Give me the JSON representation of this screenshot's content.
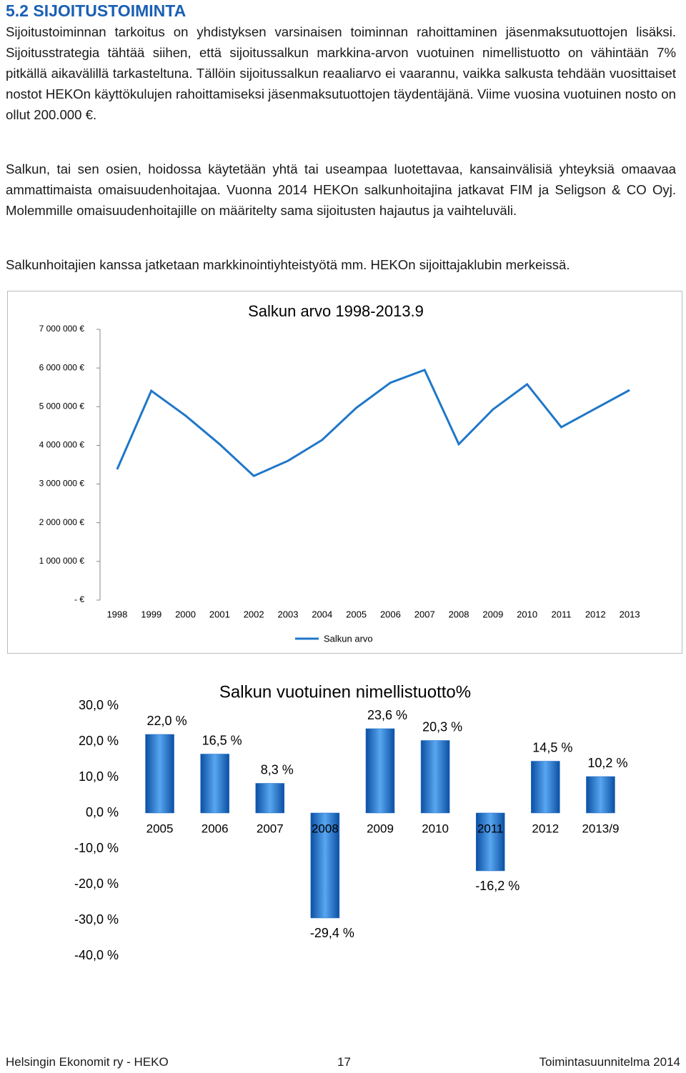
{
  "heading": "5.2  SIJOITUSTOIMINTA",
  "paragraphs": [
    "Sijoitustoiminnan tarkoitus on yhdistyksen varsinaisen toiminnan rahoittaminen jäsenmaksutuottojen lisäksi. Sijoitusstrategia tähtää siihen, että sijoitussalkun markkina-arvon vuotuinen nimellistuotto on vähintään 7% pitkällä aikavälillä tarkasteltuna. Tällöin sijoitussalkun reaaliarvo ei vaarannu, vaikka salkusta tehdään vuosittaiset nostot HEKOn käyttökulujen rahoittamiseksi jäsenmaksutuottojen täydentäjänä. Viime vuosina vuotuinen nosto on ollut 200.000 €.",
    "Salkun, tai sen osien, hoidossa käytetään yhtä tai useampaa luotettavaa, kansainvälisiä yhteyksiä omaavaa ammattimaista omaisuudenhoitajaa. Vuonna 2014 HEKOn salkunhoitajina jatkavat FIM ja Seligson & CO Oyj. Molemmille omaisuudenhoitajille on määritelty sama sijoitusten hajautus ja vaihteluväli.",
    "Salkunhoitajien kanssa jatketaan markkinointiyhteistyötä mm. HEKOn sijoittajaklubin merkeissä."
  ],
  "chart_data": [
    {
      "type": "line",
      "title": "Salkun arvo 1998-2013.9",
      "categories": [
        "1998",
        "1999",
        "2000",
        "2001",
        "2002",
        "2003",
        "2004",
        "2005",
        "2006",
        "2007",
        "2008",
        "2009",
        "2010",
        "2011",
        "2012",
        "2013"
      ],
      "series": [
        {
          "name": "Salkun arvo",
          "color": "#1f77c8",
          "values": [
            3380000,
            5410000,
            4770000,
            4030000,
            3210000,
            3600000,
            4140000,
            4970000,
            5620000,
            5950000,
            4030000,
            4930000,
            5580000,
            4470000,
            4950000,
            5430000
          ]
        }
      ],
      "ylim": [
        0,
        7000000
      ],
      "yticks": [
        {
          "value": 0,
          "label": "-  €"
        },
        {
          "value": 1000000,
          "label": "1 000 000 €"
        },
        {
          "value": 2000000,
          "label": "2 000 000 €"
        },
        {
          "value": 3000000,
          "label": "3 000 000 €"
        },
        {
          "value": 4000000,
          "label": "4 000 000 €"
        },
        {
          "value": 5000000,
          "label": "5 000 000 €"
        },
        {
          "value": 6000000,
          "label": "6 000 000 €"
        },
        {
          "value": 7000000,
          "label": "7 000 000 €"
        }
      ],
      "grid": false
    },
    {
      "type": "bar",
      "title": "Salkun vuotuinen nimellistuotto%",
      "categories": [
        "2005",
        "2006",
        "2007",
        "2008",
        "2009",
        "2010",
        "2011",
        "2012",
        "2013/9"
      ],
      "values": [
        22.0,
        16.5,
        8.3,
        -29.4,
        23.6,
        20.3,
        -16.2,
        14.5,
        10.2
      ],
      "value_labels": [
        "22,0 %",
        "16,5 %",
        "8,3 %",
        "-29,4 %",
        "23,6 %",
        "20,3 %",
        "-16,2 %",
        "14,5 %",
        "10,2 %"
      ],
      "color": "#1f6fc8",
      "ylim": [
        -40,
        30
      ],
      "yticks": [
        {
          "value": -40,
          "label": "-40,0 %"
        },
        {
          "value": -30,
          "label": "-30,0 %"
        },
        {
          "value": -20,
          "label": "-20,0 %"
        },
        {
          "value": -10,
          "label": "-10,0 %"
        },
        {
          "value": 0,
          "label": "0,0 %"
        },
        {
          "value": 10,
          "label": "10,0 %"
        },
        {
          "value": 20,
          "label": "20,0 %"
        },
        {
          "value": 30,
          "label": "30,0 %"
        }
      ],
      "grid": false
    }
  ],
  "footer": {
    "left": "Helsingin Ekonomit ry - HEKO",
    "center": "17",
    "right": "Toimintasuunnitelma 2014"
  }
}
